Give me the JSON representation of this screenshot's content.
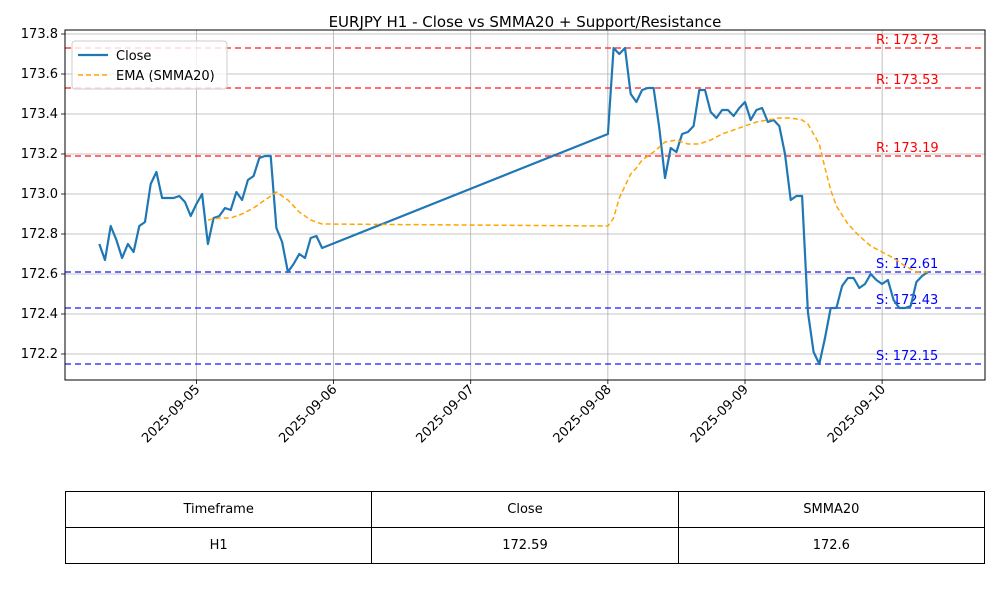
{
  "chart_data": {
    "type": "line",
    "title": "EURJPY H1 - Close vs SMMA20 + Support/Resistance",
    "xlabel": "",
    "ylabel": "",
    "xlim": [
      "2025-09-04T01:00",
      "2025-09-10T18:00"
    ],
    "ylim": [
      172.07,
      173.82
    ],
    "grid": true,
    "legend_position": "upper-left",
    "x_ticks": [
      "2025-09-05",
      "2025-09-06",
      "2025-09-07",
      "2025-09-08",
      "2025-09-09",
      "2025-09-10"
    ],
    "y_ticks": [
      "172.2",
      "172.4",
      "172.6",
      "172.8",
      "173.0",
      "173.2",
      "173.4",
      "173.6",
      "173.8"
    ],
    "series": [
      {
        "name": "Close",
        "color": "#1f77b4",
        "style": "solid",
        "x": [
          "2025-09-04T07:00",
          "2025-09-04T08:00",
          "2025-09-04T09:00",
          "2025-09-04T10:00",
          "2025-09-04T11:00",
          "2025-09-04T12:00",
          "2025-09-04T13:00",
          "2025-09-04T14:00",
          "2025-09-04T15:00",
          "2025-09-04T16:00",
          "2025-09-04T17:00",
          "2025-09-04T18:00",
          "2025-09-04T19:00",
          "2025-09-04T20:00",
          "2025-09-04T21:00",
          "2025-09-04T22:00",
          "2025-09-04T23:00",
          "2025-09-05T00:00",
          "2025-09-05T01:00",
          "2025-09-05T02:00",
          "2025-09-05T03:00",
          "2025-09-05T04:00",
          "2025-09-05T05:00",
          "2025-09-05T06:00",
          "2025-09-05T07:00",
          "2025-09-05T08:00",
          "2025-09-05T09:00",
          "2025-09-05T10:00",
          "2025-09-05T11:00",
          "2025-09-05T12:00",
          "2025-09-05T13:00",
          "2025-09-05T14:00",
          "2025-09-05T15:00",
          "2025-09-05T16:00",
          "2025-09-05T17:00",
          "2025-09-05T18:00",
          "2025-09-05T19:00",
          "2025-09-05T20:00",
          "2025-09-05T21:00",
          "2025-09-05T22:00",
          "2025-09-08T00:00",
          "2025-09-08T01:00",
          "2025-09-08T02:00",
          "2025-09-08T03:00",
          "2025-09-08T04:00",
          "2025-09-08T05:00",
          "2025-09-08T06:00",
          "2025-09-08T07:00",
          "2025-09-08T08:00",
          "2025-09-08T09:00",
          "2025-09-08T10:00",
          "2025-09-08T11:00",
          "2025-09-08T12:00",
          "2025-09-08T13:00",
          "2025-09-08T14:00",
          "2025-09-08T15:00",
          "2025-09-08T16:00",
          "2025-09-08T17:00",
          "2025-09-08T18:00",
          "2025-09-08T19:00",
          "2025-09-08T20:00",
          "2025-09-08T21:00",
          "2025-09-08T22:00",
          "2025-09-08T23:00",
          "2025-09-09T00:00",
          "2025-09-09T01:00",
          "2025-09-09T02:00",
          "2025-09-09T03:00",
          "2025-09-09T04:00",
          "2025-09-09T05:00",
          "2025-09-09T06:00",
          "2025-09-09T07:00",
          "2025-09-09T08:00",
          "2025-09-09T09:00",
          "2025-09-09T10:00",
          "2025-09-09T11:00",
          "2025-09-09T12:00",
          "2025-09-09T13:00",
          "2025-09-09T14:00",
          "2025-09-09T15:00",
          "2025-09-09T16:00",
          "2025-09-09T17:00",
          "2025-09-09T18:00",
          "2025-09-09T19:00",
          "2025-09-09T20:00",
          "2025-09-09T21:00",
          "2025-09-09T22:00",
          "2025-09-09T23:00",
          "2025-09-10T00:00",
          "2025-09-10T01:00",
          "2025-09-10T02:00",
          "2025-09-10T03:00",
          "2025-09-10T04:00",
          "2025-09-10T05:00",
          "2025-09-10T06:00",
          "2025-09-10T07:00",
          "2025-09-10T08:00"
        ],
        "y": [
          172.75,
          172.67,
          172.84,
          172.77,
          172.68,
          172.75,
          172.71,
          172.84,
          172.86,
          173.05,
          173.11,
          172.98,
          172.98,
          172.98,
          172.99,
          172.96,
          172.89,
          172.95,
          173.0,
          172.75,
          172.88,
          172.89,
          172.93,
          172.92,
          173.01,
          172.97,
          173.07,
          173.09,
          173.18,
          173.19,
          173.19,
          172.83,
          172.76,
          172.61,
          172.65,
          172.7,
          172.68,
          172.78,
          172.79,
          172.73,
          173.3,
          173.73,
          173.7,
          173.73,
          173.5,
          173.46,
          173.52,
          173.53,
          173.53,
          173.33,
          173.08,
          173.23,
          173.21,
          173.3,
          173.31,
          173.34,
          173.52,
          173.52,
          173.41,
          173.38,
          173.42,
          173.42,
          173.39,
          173.43,
          173.46,
          173.37,
          173.42,
          173.43,
          173.36,
          173.37,
          173.34,
          173.2,
          172.97,
          172.99,
          172.99,
          172.41,
          172.21,
          172.15,
          172.28,
          172.43,
          172.43,
          172.54,
          172.58,
          172.58,
          172.53,
          172.55,
          172.6,
          172.57,
          172.55,
          172.57,
          172.47,
          172.43,
          172.43,
          172.44,
          172.56,
          172.59,
          172.61
        ]
      },
      {
        "name": "EMA (SMMA20)",
        "color": "#ffa500",
        "style": "dashed",
        "x": [
          "2025-09-05T02:00",
          "2025-09-05T04:00",
          "2025-09-05T06:00",
          "2025-09-05T08:00",
          "2025-09-05T10:00",
          "2025-09-05T12:00",
          "2025-09-05T14:00",
          "2025-09-05T16:00",
          "2025-09-05T18:00",
          "2025-09-05T20:00",
          "2025-09-05T22:00",
          "2025-09-08T00:00",
          "2025-09-08T01:00",
          "2025-09-08T02:00",
          "2025-09-08T03:00",
          "2025-09-08T04:00",
          "2025-09-08T05:00",
          "2025-09-08T06:00",
          "2025-09-08T07:00",
          "2025-09-08T08:00",
          "2025-09-08T10:00",
          "2025-09-08T12:00",
          "2025-09-08T14:00",
          "2025-09-08T16:00",
          "2025-09-08T18:00",
          "2025-09-08T20:00",
          "2025-09-08T22:00",
          "2025-09-09T00:00",
          "2025-09-09T02:00",
          "2025-09-09T04:00",
          "2025-09-09T06:00",
          "2025-09-09T08:00",
          "2025-09-09T10:00",
          "2025-09-09T11:00",
          "2025-09-09T12:00",
          "2025-09-09T13:00",
          "2025-09-09T14:00",
          "2025-09-09T15:00",
          "2025-09-09T16:00",
          "2025-09-09T18:00",
          "2025-09-09T20:00",
          "2025-09-09T22:00",
          "2025-09-10T00:00",
          "2025-09-10T02:00",
          "2025-09-10T04:00",
          "2025-09-10T06:00",
          "2025-09-10T08:00"
        ],
        "y": [
          172.87,
          172.88,
          172.88,
          172.9,
          172.93,
          172.97,
          173.01,
          172.97,
          172.91,
          172.87,
          172.85,
          172.84,
          172.88,
          172.98,
          173.04,
          173.1,
          173.13,
          173.17,
          173.19,
          173.21,
          173.26,
          173.27,
          173.25,
          173.25,
          173.27,
          173.3,
          173.32,
          173.34,
          173.36,
          173.37,
          173.38,
          173.38,
          173.37,
          173.35,
          173.3,
          173.25,
          173.13,
          173.02,
          172.94,
          172.85,
          172.79,
          172.74,
          172.71,
          172.68,
          172.64,
          172.61,
          172.61
        ]
      }
    ],
    "levels": [
      {
        "type": "resistance",
        "value": 173.73,
        "label": "R: 173.73",
        "color": "#ff0000"
      },
      {
        "type": "resistance",
        "value": 173.53,
        "label": "R: 173.53",
        "color": "#ff0000"
      },
      {
        "type": "resistance",
        "value": 173.19,
        "label": "R: 173.19",
        "color": "#ff0000"
      },
      {
        "type": "support",
        "value": 172.61,
        "label": "S: 172.61",
        "color": "#0000ff"
      },
      {
        "type": "support",
        "value": 172.43,
        "label": "S: 172.43",
        "color": "#0000ff"
      },
      {
        "type": "support",
        "value": 172.15,
        "label": "S: 172.15",
        "color": "#0000ff"
      }
    ]
  },
  "table": {
    "headers": [
      "Timeframe",
      "Close",
      "SMMA20"
    ],
    "rows": [
      [
        "H1",
        "172.59",
        "172.6"
      ]
    ]
  }
}
